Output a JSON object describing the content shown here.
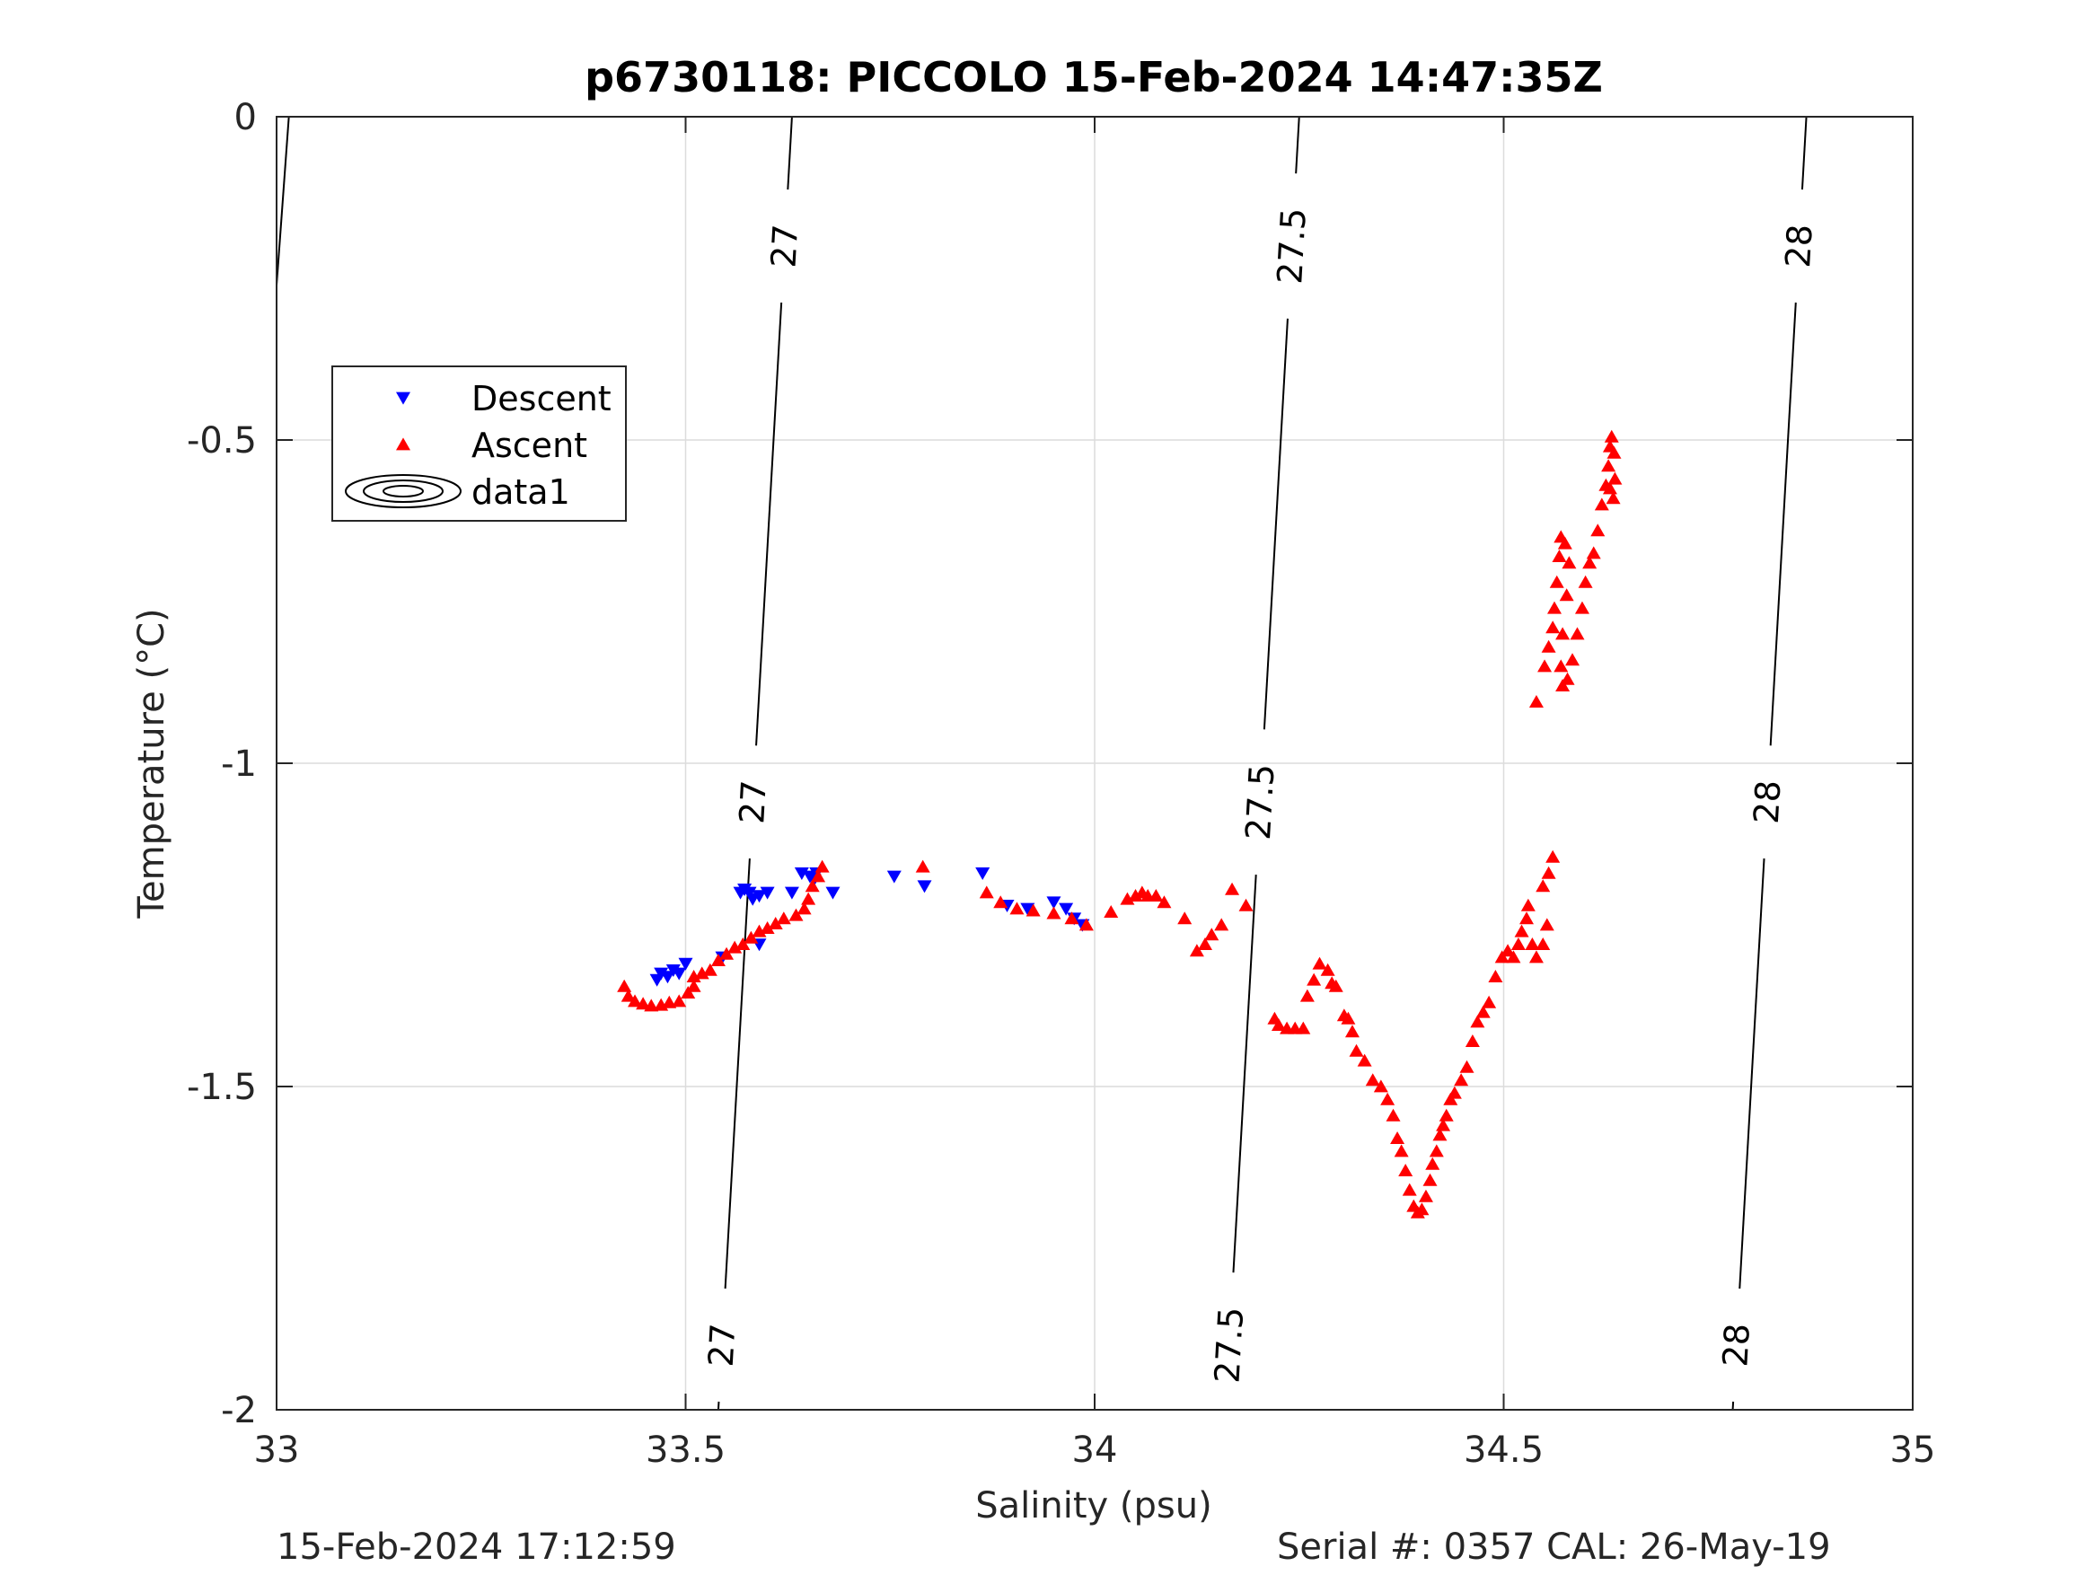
{
  "figure": {
    "footer_left": "15-Feb-2024 17:12:59",
    "footer_right": "Serial #: 0357  CAL: 26-May-19"
  },
  "chart_data": {
    "type": "scatter",
    "title": "p6730118: PICCOLO 15-Feb-2024 14:47:35Z",
    "xlabel": "Salinity (psu)",
    "ylabel": "Temperature (°C)",
    "xlim": [
      33,
      35
    ],
    "ylim": [
      -2,
      0
    ],
    "xticks": [
      33,
      33.5,
      34,
      34.5,
      35
    ],
    "xtick_labels": [
      "33",
      "33.5",
      "34",
      "34.5",
      "35"
    ],
    "yticks": [
      0,
      -0.5,
      -1,
      -1.5,
      -2
    ],
    "ytick_labels": [
      "0",
      "-0.5",
      "-1",
      "-1.5",
      "-2"
    ],
    "grid": true,
    "legend": {
      "placement": "upper-left",
      "entries": [
        "Descent",
        "Ascent",
        "data1"
      ]
    },
    "colors": {
      "descent": "#0000ff",
      "ascent": "#ff0000",
      "contour": "#000000",
      "grid": "#dcdcdc",
      "axis": "#262626"
    },
    "series": [
      {
        "name": "Descent",
        "marker": "triangle-down",
        "color": "#0000ff",
        "points": [
          [
            33.465,
            -1.335
          ],
          [
            33.47,
            -1.325
          ],
          [
            33.478,
            -1.33
          ],
          [
            33.485,
            -1.32
          ],
          [
            33.492,
            -1.325
          ],
          [
            33.5,
            -1.31
          ],
          [
            33.545,
            -1.3
          ],
          [
            33.567,
            -1.2
          ],
          [
            33.572,
            -1.195
          ],
          [
            33.578,
            -1.2
          ],
          [
            33.582,
            -1.21
          ],
          [
            33.59,
            -1.205
          ],
          [
            33.6,
            -1.2
          ],
          [
            33.59,
            -1.28
          ],
          [
            33.63,
            -1.2
          ],
          [
            33.642,
            -1.17
          ],
          [
            33.652,
            -1.175
          ],
          [
            33.66,
            -1.17
          ],
          [
            33.657,
            -1.18
          ],
          [
            33.68,
            -1.2
          ],
          [
            33.755,
            -1.175
          ],
          [
            33.792,
            -1.19
          ],
          [
            33.863,
            -1.17
          ],
          [
            33.893,
            -1.22
          ],
          [
            33.918,
            -1.225
          ],
          [
            33.95,
            -1.215
          ],
          [
            33.965,
            -1.225
          ],
          [
            33.975,
            -1.24
          ],
          [
            33.985,
            -1.25
          ]
        ]
      },
      {
        "name": "Ascent",
        "marker": "triangle-up",
        "color": "#ff0000",
        "points": [
          [
            33.425,
            -1.345
          ],
          [
            33.43,
            -1.36
          ],
          [
            33.438,
            -1.368
          ],
          [
            33.448,
            -1.372
          ],
          [
            33.458,
            -1.375
          ],
          [
            33.47,
            -1.374
          ],
          [
            33.48,
            -1.37
          ],
          [
            33.492,
            -1.368
          ],
          [
            33.503,
            -1.355
          ],
          [
            33.51,
            -1.345
          ],
          [
            33.51,
            -1.33
          ],
          [
            33.52,
            -1.325
          ],
          [
            33.53,
            -1.32
          ],
          [
            33.54,
            -1.305
          ],
          [
            33.55,
            -1.295
          ],
          [
            33.56,
            -1.285
          ],
          [
            33.57,
            -1.28
          ],
          [
            33.58,
            -1.27
          ],
          [
            33.59,
            -1.26
          ],
          [
            33.6,
            -1.255
          ],
          [
            33.61,
            -1.248
          ],
          [
            33.62,
            -1.24
          ],
          [
            33.635,
            -1.235
          ],
          [
            33.645,
            -1.225
          ],
          [
            33.65,
            -1.21
          ],
          [
            33.655,
            -1.19
          ],
          [
            33.662,
            -1.175
          ],
          [
            33.667,
            -1.16
          ],
          [
            33.79,
            -1.16
          ],
          [
            33.868,
            -1.2
          ],
          [
            33.885,
            -1.215
          ],
          [
            33.905,
            -1.225
          ],
          [
            33.925,
            -1.228
          ],
          [
            33.95,
            -1.232
          ],
          [
            33.972,
            -1.24
          ],
          [
            33.99,
            -1.25
          ],
          [
            34.02,
            -1.23
          ],
          [
            34.04,
            -1.21
          ],
          [
            34.05,
            -1.205
          ],
          [
            34.058,
            -1.2
          ],
          [
            34.065,
            -1.205
          ],
          [
            34.075,
            -1.205
          ],
          [
            34.085,
            -1.215
          ],
          [
            34.11,
            -1.24
          ],
          [
            34.125,
            -1.29
          ],
          [
            34.135,
            -1.28
          ],
          [
            34.143,
            -1.265
          ],
          [
            34.155,
            -1.25
          ],
          [
            34.168,
            -1.195
          ],
          [
            34.185,
            -1.22
          ],
          [
            34.22,
            -1.395
          ],
          [
            34.225,
            -1.405
          ],
          [
            34.235,
            -1.41
          ],
          [
            34.245,
            -1.41
          ],
          [
            34.255,
            -1.41
          ],
          [
            34.26,
            -1.36
          ],
          [
            34.268,
            -1.335
          ],
          [
            34.275,
            -1.31
          ],
          [
            34.285,
            -1.32
          ],
          [
            34.29,
            -1.34
          ],
          [
            34.295,
            -1.345
          ],
          [
            34.305,
            -1.39
          ],
          [
            34.31,
            -1.395
          ],
          [
            34.315,
            -1.415
          ],
          [
            34.32,
            -1.445
          ],
          [
            34.33,
            -1.46
          ],
          [
            34.34,
            -1.49
          ],
          [
            34.35,
            -1.5
          ],
          [
            34.358,
            -1.52
          ],
          [
            34.365,
            -1.545
          ],
          [
            34.37,
            -1.58
          ],
          [
            34.375,
            -1.6
          ],
          [
            34.38,
            -1.63
          ],
          [
            34.385,
            -1.66
          ],
          [
            34.39,
            -1.685
          ],
          [
            34.395,
            -1.695
          ],
          [
            34.4,
            -1.69
          ],
          [
            34.405,
            -1.67
          ],
          [
            34.41,
            -1.645
          ],
          [
            34.413,
            -1.62
          ],
          [
            34.418,
            -1.6
          ],
          [
            34.422,
            -1.575
          ],
          [
            34.426,
            -1.56
          ],
          [
            34.43,
            -1.545
          ],
          [
            34.435,
            -1.52
          ],
          [
            34.44,
            -1.51
          ],
          [
            34.448,
            -1.49
          ],
          [
            34.455,
            -1.47
          ],
          [
            34.462,
            -1.43
          ],
          [
            34.468,
            -1.4
          ],
          [
            34.475,
            -1.385
          ],
          [
            34.482,
            -1.37
          ],
          [
            34.49,
            -1.33
          ],
          [
            34.498,
            -1.3
          ],
          [
            34.505,
            -1.29
          ],
          [
            34.512,
            -1.3
          ],
          [
            34.518,
            -1.28
          ],
          [
            34.522,
            -1.26
          ],
          [
            34.528,
            -1.24
          ],
          [
            34.53,
            -1.22
          ],
          [
            34.535,
            -1.28
          ],
          [
            34.54,
            -1.3
          ],
          [
            34.548,
            -1.28
          ],
          [
            34.553,
            -1.25
          ],
          [
            34.548,
            -1.19
          ],
          [
            34.555,
            -1.17
          ],
          [
            34.56,
            -1.145
          ],
          [
            34.54,
            -0.905
          ],
          [
            34.55,
            -0.85
          ],
          [
            34.555,
            -0.82
          ],
          [
            34.56,
            -0.79
          ],
          [
            34.562,
            -0.76
          ],
          [
            34.565,
            -0.72
          ],
          [
            34.568,
            -0.68
          ],
          [
            34.57,
            -0.65
          ],
          [
            34.575,
            -0.66
          ],
          [
            34.58,
            -0.69
          ],
          [
            34.577,
            -0.74
          ],
          [
            34.572,
            -0.8
          ],
          [
            34.57,
            -0.85
          ],
          [
            34.572,
            -0.88
          ],
          [
            34.578,
            -0.87
          ],
          [
            34.584,
            -0.84
          ],
          [
            34.59,
            -0.8
          ],
          [
            34.596,
            -0.76
          ],
          [
            34.6,
            -0.72
          ],
          [
            34.605,
            -0.69
          ],
          [
            34.61,
            -0.675
          ],
          [
            34.615,
            -0.64
          ],
          [
            34.62,
            -0.6
          ],
          [
            34.625,
            -0.57
          ],
          [
            34.628,
            -0.54
          ],
          [
            34.63,
            -0.51
          ],
          [
            34.632,
            -0.495
          ],
          [
            34.635,
            -0.52
          ],
          [
            34.636,
            -0.56
          ],
          [
            34.634,
            -0.59
          ],
          [
            34.63,
            -0.575
          ]
        ]
      }
    ],
    "contours": {
      "name": "data1",
      "levels": [
        {
          "value": 26.5,
          "label": "",
          "x_at_t0": 33.015,
          "x_at_tm2": 32.9
        },
        {
          "value": 27,
          "label": "27",
          "x_at_t0": 33.63,
          "x_at_tm2": 33.54
        },
        {
          "value": 27.5,
          "label": "27.5",
          "x_at_t0": 34.25,
          "x_at_tm2": 34.16
        },
        {
          "value": 28,
          "label": "28",
          "x_at_t0": 34.87,
          "x_at_tm2": 34.78
        }
      ]
    }
  }
}
